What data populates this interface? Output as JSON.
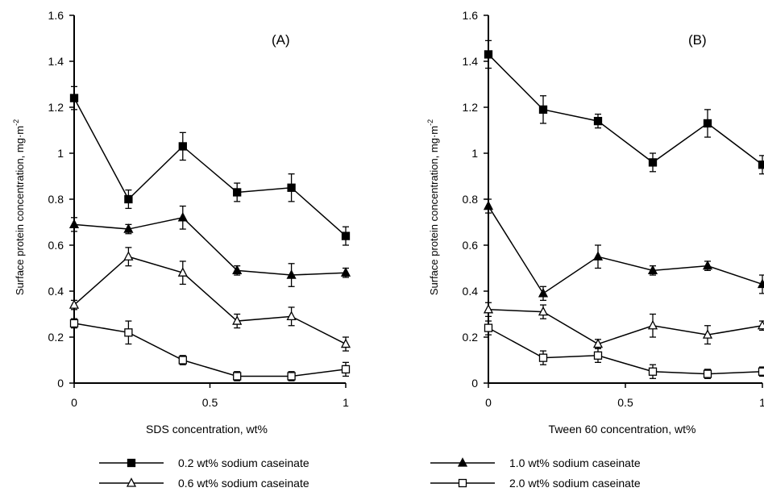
{
  "chart_data": [
    {
      "type": "line",
      "panel_label": "(A)",
      "xlabel": "SDS concentration, wt%",
      "ylabel": "Surface protein concentration, mg·m",
      "ylabel_sup": "-2",
      "xlim": [
        0,
        1
      ],
      "ylim": [
        0,
        1.6
      ],
      "xticks": [
        0,
        0.5,
        1
      ],
      "xtick_labels": [
        "0",
        "0.5",
        "1"
      ],
      "yticks": [
        0,
        0.2,
        0.4,
        0.6,
        0.8,
        1,
        1.2,
        1.4,
        1.6
      ],
      "ytick_labels": [
        "0",
        "0.2",
        "0.4",
        "0.6",
        "0.8",
        "1",
        "1.2",
        "1.4",
        "1.6"
      ],
      "x": [
        0,
        0.2,
        0.4,
        0.6,
        0.8,
        1
      ],
      "series": [
        {
          "name": "0.2 wt% sodium caseinate",
          "marker": "square-filled",
          "values": [
            1.24,
            0.8,
            1.03,
            0.83,
            0.85,
            0.64
          ],
          "errors": [
            0.05,
            0.04,
            0.06,
            0.04,
            0.06,
            0.04
          ]
        },
        {
          "name": "1.0 wt% sodium caseinate",
          "marker": "triangle-filled",
          "values": [
            0.69,
            0.67,
            0.72,
            0.49,
            0.47,
            0.48
          ],
          "errors": [
            0.03,
            0.02,
            0.05,
            0.02,
            0.05,
            0.02
          ]
        },
        {
          "name": "0.6 wt% sodium caseinate",
          "marker": "triangle-open",
          "values": [
            0.34,
            0.55,
            0.48,
            0.27,
            0.29,
            0.17
          ],
          "errors": [
            0.02,
            0.04,
            0.05,
            0.03,
            0.04,
            0.03
          ]
        },
        {
          "name": "2.0 wt% sodium caseinate",
          "marker": "square-open",
          "values": [
            0.26,
            0.22,
            0.1,
            0.03,
            0.03,
            0.06
          ],
          "errors": [
            0.02,
            0.05,
            0.02,
            0.02,
            0.02,
            0.03
          ]
        }
      ]
    },
    {
      "type": "line",
      "panel_label": "(B)",
      "xlabel": "Tween 60 concentration, wt%",
      "ylabel": "Surface protein concentration, mg·m",
      "ylabel_sup": "-2",
      "xlim": [
        0,
        1
      ],
      "ylim": [
        0,
        1.6
      ],
      "xticks": [
        0,
        0.5,
        1
      ],
      "xtick_labels": [
        "0",
        "0.5",
        "1"
      ],
      "yticks": [
        0,
        0.2,
        0.4,
        0.6,
        0.8,
        1,
        1.2,
        1.4,
        1.6
      ],
      "ytick_labels": [
        "0",
        "0.2",
        "0.4",
        "0.6",
        "0.8",
        "1",
        "1.2",
        "1.4",
        "1.6"
      ],
      "x": [
        0,
        0.2,
        0.4,
        0.6,
        0.8,
        1
      ],
      "series": [
        {
          "name": "0.2 wt% sodium caseinate",
          "marker": "square-filled",
          "values": [
            1.43,
            1.19,
            1.14,
            0.96,
            1.13,
            0.95
          ],
          "errors": [
            0.06,
            0.06,
            0.03,
            0.04,
            0.06,
            0.04
          ]
        },
        {
          "name": "1.0 wt% sodium caseinate",
          "marker": "triangle-filled",
          "values": [
            0.77,
            0.39,
            0.55,
            0.49,
            0.51,
            0.43
          ],
          "errors": [
            0.03,
            0.03,
            0.05,
            0.02,
            0.02,
            0.04
          ]
        },
        {
          "name": "0.6 wt% sodium caseinate",
          "marker": "triangle-open",
          "values": [
            0.32,
            0.31,
            0.17,
            0.25,
            0.21,
            0.25
          ],
          "errors": [
            0.03,
            0.03,
            0.02,
            0.05,
            0.04,
            0.02
          ]
        },
        {
          "name": "2.0 wt% sodium caseinate",
          "marker": "square-open",
          "values": [
            0.24,
            0.11,
            0.12,
            0.05,
            0.04,
            0.05
          ],
          "errors": [
            0.03,
            0.03,
            0.03,
            0.03,
            0.02,
            0.02
          ]
        }
      ]
    }
  ],
  "legend": {
    "entries": [
      {
        "label": "0.2 wt% sodium caseinate",
        "marker": "square-filled"
      },
      {
        "label": "1.0 wt% sodium caseinate",
        "marker": "triangle-filled"
      },
      {
        "label": "0.6 wt% sodium caseinate",
        "marker": "triangle-open"
      },
      {
        "label": "2.0 wt% sodium caseinate",
        "marker": "square-open"
      }
    ]
  }
}
